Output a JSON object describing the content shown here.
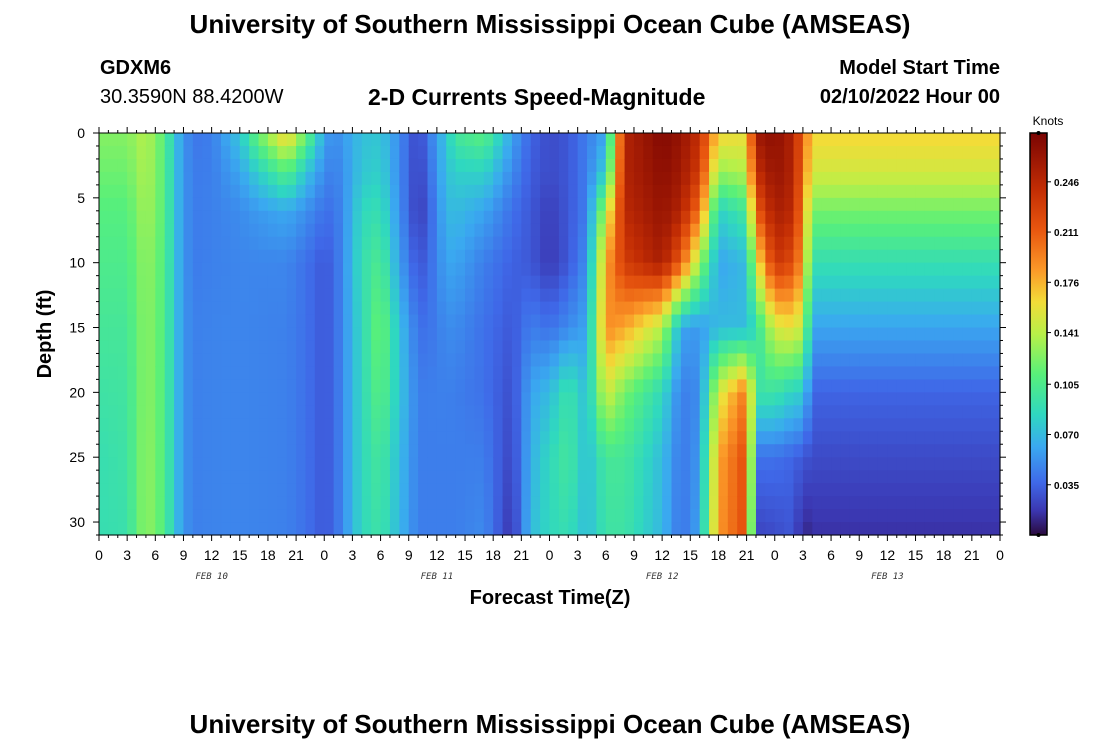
{
  "header": {
    "title": "University of Southern Mississippi Ocean Cube (AMSEAS)",
    "station": "GDXM6",
    "coords": "30.3590N  88.4200W",
    "plot_title": "2-D Currents Speed-Magnitude",
    "start_label": "Model Start Time",
    "start_value": "02/10/2022 Hour 00"
  },
  "footer": {
    "title": "University of Southern Mississippi Ocean Cube (AMSEAS)"
  },
  "chart_data": {
    "type": "heatmap",
    "xlabel": "Forecast Time(Z)",
    "ylabel": "Depth (ft)",
    "colorbar_label": "Knots",
    "x_range_hours": [
      0,
      96
    ],
    "y_range_ft": [
      0,
      31
    ],
    "x_tick_labels": [
      "0",
      "3",
      "6",
      "9",
      "12",
      "15",
      "18",
      "21",
      "0",
      "3",
      "6",
      "9",
      "12",
      "15",
      "18",
      "21",
      "0",
      "3",
      "6",
      "9",
      "12",
      "15",
      "18",
      "21",
      "0",
      "3",
      "6",
      "9",
      "12",
      "15",
      "18",
      "21",
      "0"
    ],
    "y_ticks": [
      0,
      5,
      10,
      15,
      20,
      25,
      30
    ],
    "day_labels": [
      {
        "label": "FEB 10",
        "hour": 12
      },
      {
        "label": "FEB 11",
        "hour": 36
      },
      {
        "label": "FEB 12",
        "hour": 60
      },
      {
        "label": "FEB 13",
        "hour": 84
      }
    ],
    "colorbar_ticks": [
      0.035,
      0.07,
      0.105,
      0.141,
      0.176,
      0.211,
      0.246
    ],
    "colorbar_tick_labels": [
      "0.035",
      "0.070",
      "0.105",
      "0.141",
      "0.176",
      "0.211",
      "0.246"
    ],
    "colorbar_range": [
      0,
      0.28
    ],
    "colormap_stops": [
      [
        0.0,
        "#2a0a3e"
      ],
      [
        0.06,
        "#3b36b0"
      ],
      [
        0.13,
        "#3f68e8"
      ],
      [
        0.22,
        "#3aa9f0"
      ],
      [
        0.3,
        "#2fd8c0"
      ],
      [
        0.4,
        "#58f07a"
      ],
      [
        0.5,
        "#b8f048"
      ],
      [
        0.58,
        "#f2dc38"
      ],
      [
        0.66,
        "#fb9828"
      ],
      [
        0.76,
        "#e8560f"
      ],
      [
        0.86,
        "#c22d04"
      ],
      [
        1.0,
        "#7a0403"
      ]
    ],
    "depth_profiles": {
      "depths_ft": [
        0,
        3,
        6,
        10,
        15,
        20,
        25,
        31
      ],
      "columns": [
        {
          "hour": 0,
          "speeds": [
            0.125,
            0.118,
            0.11,
            0.105,
            0.1,
            0.095,
            0.09,
            0.09
          ]
        },
        {
          "hour": 3,
          "speeds": [
            0.125,
            0.118,
            0.11,
            0.105,
            0.1,
            0.097,
            0.095,
            0.092
          ]
        },
        {
          "hour": 5,
          "speeds": [
            0.14,
            0.138,
            0.135,
            0.13,
            0.128,
            0.128,
            0.13,
            0.13
          ]
        },
        {
          "hour": 7,
          "speeds": [
            0.11,
            0.11,
            0.11,
            0.108,
            0.108,
            0.108,
            0.108,
            0.108
          ]
        },
        {
          "hour": 8,
          "speeds": [
            0.075,
            0.075,
            0.075,
            0.075,
            0.075,
            0.075,
            0.075,
            0.075
          ]
        },
        {
          "hour": 9,
          "speeds": [
            0.055,
            0.055,
            0.055,
            0.055,
            0.055,
            0.055,
            0.055,
            0.055
          ]
        },
        {
          "hour": 10,
          "speeds": [
            0.042,
            0.044,
            0.044,
            0.044,
            0.046,
            0.046,
            0.046,
            0.046
          ]
        },
        {
          "hour": 12,
          "speeds": [
            0.045,
            0.045,
            0.046,
            0.046,
            0.047,
            0.047,
            0.047,
            0.047
          ]
        },
        {
          "hour": 15,
          "speeds": [
            0.075,
            0.06,
            0.05,
            0.048,
            0.048,
            0.048,
            0.048,
            0.048
          ]
        },
        {
          "hour": 17,
          "speeds": [
            0.12,
            0.08,
            0.056,
            0.048,
            0.047,
            0.047,
            0.047,
            0.047
          ]
        },
        {
          "hour": 20,
          "speeds": [
            0.17,
            0.11,
            0.062,
            0.048,
            0.046,
            0.046,
            0.046,
            0.046
          ]
        },
        {
          "hour": 22,
          "speeds": [
            0.12,
            0.075,
            0.052,
            0.04,
            0.04,
            0.04,
            0.04,
            0.04
          ]
        },
        {
          "hour": 24,
          "speeds": [
            0.06,
            0.05,
            0.04,
            0.03,
            0.03,
            0.03,
            0.03,
            0.03
          ]
        },
        {
          "hour": 25,
          "speeds": [
            0.05,
            0.045,
            0.04,
            0.036,
            0.036,
            0.036,
            0.036,
            0.036
          ]
        },
        {
          "hour": 26,
          "speeds": [
            0.056,
            0.052,
            0.05,
            0.05,
            0.05,
            0.05,
            0.05,
            0.05
          ]
        },
        {
          "hour": 28,
          "speeds": [
            0.072,
            0.075,
            0.085,
            0.09,
            0.085,
            0.085,
            0.085,
            0.085
          ]
        },
        {
          "hour": 30,
          "speeds": [
            0.075,
            0.08,
            0.09,
            0.105,
            0.12,
            0.112,
            0.1,
            0.095
          ]
        },
        {
          "hour": 32,
          "speeds": [
            0.05,
            0.05,
            0.052,
            0.058,
            0.072,
            0.075,
            0.07,
            0.068
          ]
        },
        {
          "hour": 34,
          "speeds": [
            0.022,
            0.02,
            0.018,
            0.028,
            0.04,
            0.045,
            0.045,
            0.045
          ]
        },
        {
          "hour": 35,
          "speeds": [
            0.04,
            0.035,
            0.03,
            0.035,
            0.04,
            0.045,
            0.045,
            0.045
          ]
        },
        {
          "hour": 37,
          "speeds": [
            0.075,
            0.072,
            0.068,
            0.06,
            0.05,
            0.046,
            0.045,
            0.045
          ]
        },
        {
          "hour": 38,
          "speeds": [
            0.1,
            0.08,
            0.07,
            0.06,
            0.05,
            0.045,
            0.045,
            0.045
          ]
        },
        {
          "hour": 41,
          "speeds": [
            0.112,
            0.082,
            0.06,
            0.045,
            0.04,
            0.04,
            0.045,
            0.05
          ]
        },
        {
          "hour": 44,
          "speeds": [
            0.06,
            0.05,
            0.04,
            0.034,
            0.03,
            0.026,
            0.022,
            0.015
          ]
        },
        {
          "hour": 46,
          "speeds": [
            0.035,
            0.032,
            0.03,
            0.03,
            0.045,
            0.06,
            0.065,
            0.07
          ]
        },
        {
          "hour": 48,
          "speeds": [
            0.025,
            0.025,
            0.02,
            0.018,
            0.04,
            0.07,
            0.085,
            0.085
          ]
        },
        {
          "hour": 50,
          "speeds": [
            0.03,
            0.03,
            0.03,
            0.03,
            0.05,
            0.095,
            0.1,
            0.09
          ]
        },
        {
          "hour": 52,
          "speeds": [
            0.045,
            0.045,
            0.045,
            0.052,
            0.06,
            0.07,
            0.07,
            0.07
          ]
        },
        {
          "hour": 54,
          "speeds": [
            0.06,
            0.08,
            0.14,
            0.18,
            0.19,
            0.15,
            0.1,
            0.095
          ]
        },
        {
          "hour": 56,
          "speeds": [
            0.25,
            0.25,
            0.245,
            0.23,
            0.18,
            0.12,
            0.1,
            0.095
          ]
        },
        {
          "hour": 60,
          "speeds": [
            0.275,
            0.27,
            0.265,
            0.255,
            0.14,
            0.085,
            0.07,
            0.068
          ]
        },
        {
          "hour": 62,
          "speeds": [
            0.265,
            0.26,
            0.25,
            0.21,
            0.06,
            0.045,
            0.042,
            0.04
          ]
        },
        {
          "hour": 64,
          "speeds": [
            0.24,
            0.23,
            0.2,
            0.13,
            0.055,
            0.05,
            0.055,
            0.06
          ]
        },
        {
          "hour": 66,
          "speeds": [
            0.165,
            0.13,
            0.08,
            0.06,
            0.07,
            0.15,
            0.18,
            0.185
          ]
        },
        {
          "hour": 69,
          "speeds": [
            0.16,
            0.14,
            0.1,
            0.07,
            0.07,
            0.2,
            0.22,
            0.22
          ]
        },
        {
          "hour": 70,
          "speeds": [
            0.26,
            0.24,
            0.21,
            0.15,
            0.09,
            0.095,
            0.04,
            0.022
          ]
        },
        {
          "hour": 72,
          "speeds": [
            0.27,
            0.265,
            0.255,
            0.235,
            0.15,
            0.095,
            0.04,
            0.025
          ]
        },
        {
          "hour": 74,
          "speeds": [
            0.25,
            0.25,
            0.245,
            0.22,
            0.16,
            0.08,
            0.035,
            0.03
          ]
        },
        {
          "hour": 75,
          "speeds": [
            0.205,
            0.2,
            0.19,
            0.18,
            0.14,
            0.08,
            0.03,
            0.008
          ]
        },
        {
          "hour": 76,
          "speeds": [
            0.165,
            0.15,
            0.12,
            0.09,
            0.06,
            0.035,
            0.025,
            0.015
          ]
        }
      ]
    }
  }
}
